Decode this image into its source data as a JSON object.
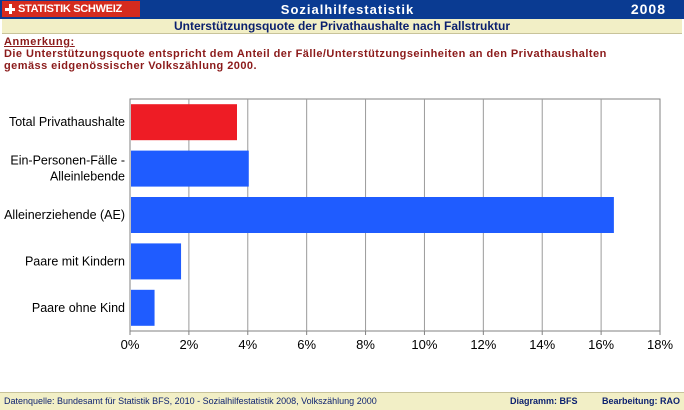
{
  "header": {
    "logo_text": "STATISTIK SCHWEIZ",
    "app_title": "Sozialhilfestatistik",
    "year": "2008",
    "subtitle": "Unterstützungsquote der Privathaushalte nach Fallstruktur"
  },
  "note": {
    "title": "Anmerkung:",
    "line1": "Die Unterstützungsquote entspricht dem Anteil der Fälle/Unterstützungseinheiten an den Privathaushalten",
    "line2": "gemäss eidgenössischer Volkszählung 2000."
  },
  "chart_data": {
    "type": "bar",
    "orientation": "horizontal",
    "categories": [
      [
        "Total Privathaushalte"
      ],
      [
        "Ein-Personen-Fälle -",
        "Alleinlebende"
      ],
      [
        "Alleinerziehende (AE)"
      ],
      [
        "Paare mit Kindern"
      ],
      [
        "Paare ohne Kind"
      ]
    ],
    "values": [
      3.6,
      4.0,
      16.4,
      1.7,
      0.8
    ],
    "bar_colors": [
      "#ee1c25",
      "#1f5cff",
      "#1f5cff",
      "#1f5cff",
      "#1f5cff"
    ],
    "xlim": [
      0,
      18
    ],
    "xticks": [
      "0%",
      "2%",
      "4%",
      "6%",
      "8%",
      "10%",
      "12%",
      "14%",
      "16%",
      "18%"
    ],
    "grid": true
  },
  "footer": {
    "source": "Datenquelle: Bundesamt für Statistik BFS, 2010 - Sozialhilfestatistik 2008, Volkszählung 2000",
    "diagram": "Diagramm: BFS",
    "editing": "Bearbeitung: RAO"
  },
  "colors": {
    "header_bg": "#0a3b92",
    "subbar_bg": "#f2efc6",
    "note_text": "#8b1a1a",
    "logo_red": "#d52b1e"
  }
}
